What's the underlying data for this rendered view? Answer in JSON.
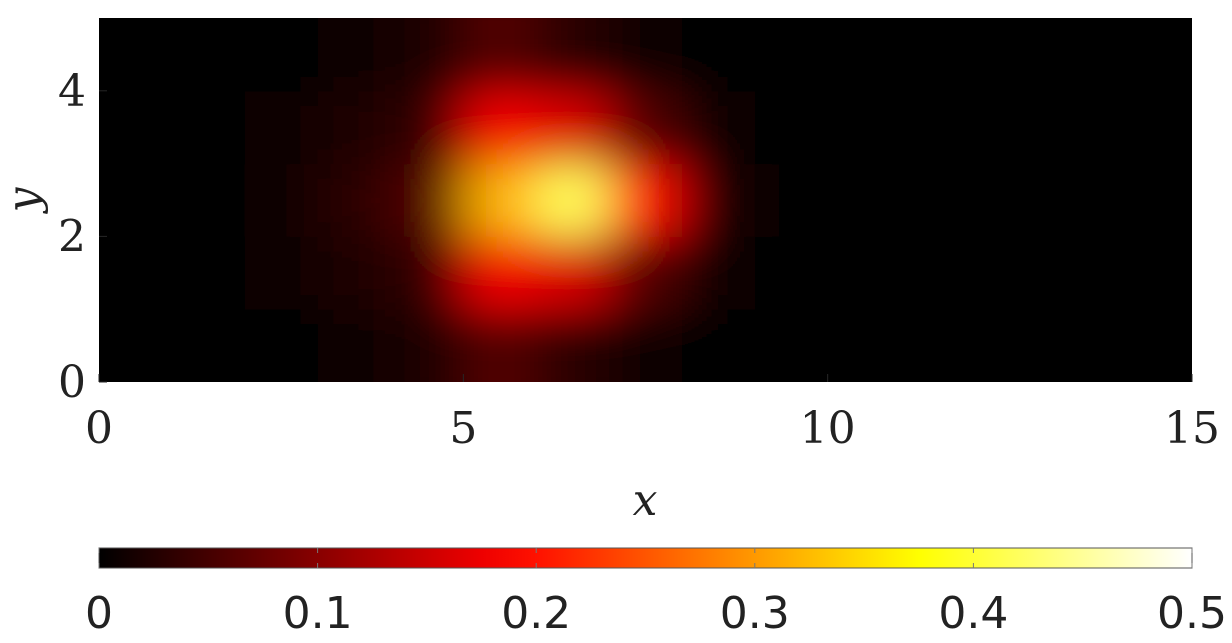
{
  "chart_data": {
    "type": "heatmap",
    "xlabel": "x",
    "ylabel": "y",
    "xlim": [
      0,
      15
    ],
    "ylim": [
      0,
      5
    ],
    "xticks": [
      0,
      5,
      10,
      15
    ],
    "yticks": [
      0,
      2,
      4
    ],
    "colormap": "hot",
    "clim": [
      0,
      0.5
    ],
    "cticks": [
      0,
      0.1,
      0.2,
      0.3,
      0.4,
      0.5
    ],
    "x": [
      0.5,
      1.5,
      2.5,
      3.5,
      4.5,
      5.5,
      6.5,
      7.5,
      8.5,
      9.5,
      10.5,
      11.5,
      12.5,
      13.5,
      14.5
    ],
    "y": [
      0.5,
      1.5,
      2.5,
      3.5,
      4.5
    ],
    "z": [
      [
        0,
        0,
        0,
        0.005,
        0.02,
        0.06,
        0.03,
        0.01,
        0,
        0,
        0,
        0,
        0,
        0,
        0
      ],
      [
        0,
        0,
        0.005,
        0.02,
        0.04,
        0.18,
        0.16,
        0.06,
        0.01,
        0,
        0,
        0,
        0,
        0,
        0
      ],
      [
        0,
        0,
        0.01,
        0.03,
        0.06,
        0.32,
        0.42,
        0.2,
        0.02,
        0,
        0,
        0,
        0,
        0,
        0
      ],
      [
        0,
        0,
        0.005,
        0.02,
        0.04,
        0.18,
        0.16,
        0.06,
        0.01,
        0,
        0,
        0,
        0,
        0,
        0
      ],
      [
        0,
        0,
        0,
        0.005,
        0.02,
        0.06,
        0.03,
        0.01,
        0,
        0,
        0,
        0,
        0,
        0,
        0
      ]
    ]
  }
}
